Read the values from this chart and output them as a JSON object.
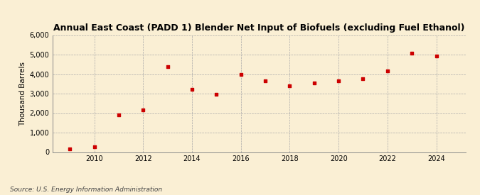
{
  "title": "Annual East Coast (PADD 1) Blender Net Input of Biofuels (excluding Fuel Ethanol)",
  "ylabel": "Thousand Barrels",
  "source": "Source: U.S. Energy Information Administration",
  "background_color": "#faefd4",
  "marker_color": "#cc0000",
  "grid_color": "#aaaaaa",
  "years": [
    2009,
    2010,
    2011,
    2012,
    2013,
    2014,
    2015,
    2016,
    2017,
    2018,
    2019,
    2020,
    2021,
    2022,
    2023,
    2024
  ],
  "values": [
    150,
    290,
    1900,
    2175,
    4400,
    3225,
    2975,
    3975,
    3650,
    3400,
    3550,
    3650,
    3775,
    4175,
    5075,
    4925
  ],
  "ylim": [
    0,
    6000
  ],
  "yticks": [
    0,
    1000,
    2000,
    3000,
    4000,
    5000,
    6000
  ],
  "xlim": [
    2008.3,
    2025.2
  ],
  "xticks": [
    2010,
    2012,
    2014,
    2016,
    2018,
    2020,
    2022,
    2024
  ],
  "title_fontsize": 9.0,
  "tick_fontsize": 7.0,
  "ylabel_fontsize": 7.5,
  "source_fontsize": 6.5
}
